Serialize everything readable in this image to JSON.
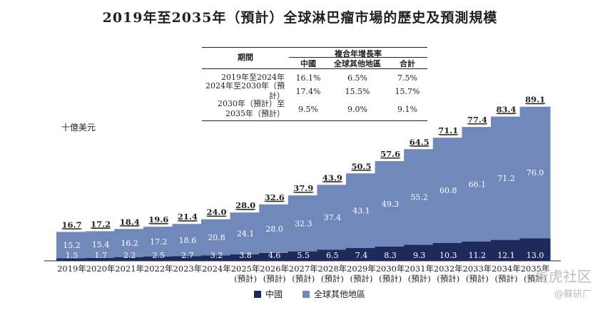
{
  "title": "2019年至2035年（預計）全球淋巴瘤市場的歷史及預測規模",
  "cagr_table": {
    "header_period": "期間",
    "header_group": "複合年增長率",
    "columns": [
      "中國",
      "全球其他地區",
      "合計"
    ],
    "rows": [
      {
        "period_lines": [
          "2019年至2024年"
        ],
        "values": [
          "16.1%",
          "6.5%",
          "7.5%"
        ]
      },
      {
        "period_lines": [
          "2024年至2030年（預計）"
        ],
        "values": [
          "17.4%",
          "15.5%",
          "15.7%"
        ]
      },
      {
        "period_lines": [
          "2030年（預計）至",
          "2035年（預計）"
        ],
        "values": [
          "9.5%",
          "9.0%",
          "9.1%"
        ]
      }
    ]
  },
  "unit_label": "十億美元",
  "legend": [
    "中國",
    "全球其他地區"
  ],
  "colors": {
    "china": "#1f2a5c",
    "rest": "#7188bb",
    "text": "#231f20"
  },
  "watermark": {
    "line1": "蛋虎社区",
    "line2": "@蘇研厂"
  },
  "chart_data": {
    "type": "bar",
    "stacked": true,
    "categories": [
      [
        "2019年"
      ],
      [
        "2020年"
      ],
      [
        "2021年"
      ],
      [
        "2022年"
      ],
      [
        "2023年"
      ],
      [
        "2024年"
      ],
      [
        "2025年",
        "(預計)"
      ],
      [
        "2026年",
        "(預計)"
      ],
      [
        "2027年",
        "(預計)"
      ],
      [
        "2028年",
        "(預計)"
      ],
      [
        "2029年",
        "(預計)"
      ],
      [
        "2030年",
        "(預計)"
      ],
      [
        "2031年",
        "(預計)"
      ],
      [
        "2032年",
        "(預計)"
      ],
      [
        "2033年",
        "(預計)"
      ],
      [
        "2034年",
        "(預計)"
      ],
      [
        "2035年",
        "(預計)"
      ]
    ],
    "series": [
      {
        "name": "中國",
        "values": [
          "1.5",
          "1.7",
          "2.2",
          "2.5",
          "2.7",
          "3.2",
          "3.8",
          "4.6",
          "5.5",
          "6.5",
          "7.4",
          "8.3",
          "9.3",
          "10.3",
          "11.2",
          "12.1",
          "13.0"
        ]
      },
      {
        "name": "全球其他地區",
        "values": [
          "15.2",
          "15.4",
          "16.2",
          "17.2",
          "18.6",
          "20.8",
          "24.1",
          "28.0",
          "32.3",
          "37.4",
          "43.1",
          "49.3",
          "55.2",
          "60.8",
          "66.1",
          "71.2",
          "76.0"
        ]
      }
    ],
    "totals": [
      "16.7",
      "17.2",
      "18.4",
      "19.6",
      "21.4",
      "24.0",
      "28.0",
      "32.6",
      "37.9",
      "43.9",
      "50.5",
      "57.6",
      "64.5",
      "71.1",
      "77.4",
      "83.4",
      "89.1"
    ],
    "ylim": [
      0,
      90
    ]
  }
}
